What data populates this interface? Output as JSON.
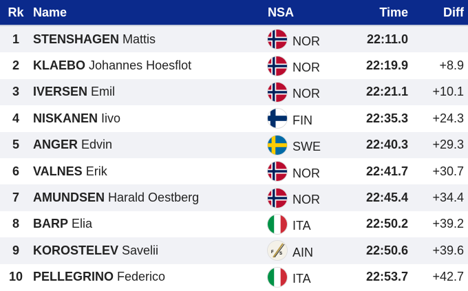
{
  "header": {
    "rank": "Rk",
    "name": "Name",
    "nsa": "NSA",
    "time": "Time",
    "diff": "Diff"
  },
  "colors": {
    "header_bg": "#0b2a8c"
  },
  "rows": [
    {
      "rank": "1",
      "last": "STENSHAGEN",
      "first": "Mattis",
      "nsa": "NOR",
      "flag": "norway-flag",
      "time": "22:11.0",
      "diff": ""
    },
    {
      "rank": "2",
      "last": "KLAEBO",
      "first": "Johannes Hoesflot",
      "nsa": "NOR",
      "flag": "norway-flag",
      "time": "22:19.9",
      "diff": "+8.9"
    },
    {
      "rank": "3",
      "last": "IVERSEN",
      "first": "Emil",
      "nsa": "NOR",
      "flag": "norway-flag",
      "time": "22:21.1",
      "diff": "+10.1"
    },
    {
      "rank": "4",
      "last": "NISKANEN",
      "first": "Iivo",
      "nsa": "FIN",
      "flag": "finland-flag",
      "time": "22:35.3",
      "diff": "+24.3"
    },
    {
      "rank": "5",
      "last": "ANGER",
      "first": "Edvin",
      "nsa": "SWE",
      "flag": "sweden-flag",
      "time": "22:40.3",
      "diff": "+29.3"
    },
    {
      "rank": "6",
      "last": "VALNES",
      "first": "Erik",
      "nsa": "NOR",
      "flag": "norway-flag",
      "time": "22:41.7",
      "diff": "+30.7"
    },
    {
      "rank": "7",
      "last": "AMUNDSEN",
      "first": "Harald Oestberg",
      "nsa": "NOR",
      "flag": "norway-flag",
      "time": "22:45.4",
      "diff": "+34.4"
    },
    {
      "rank": "8",
      "last": "BARP",
      "first": "Elia",
      "nsa": "ITA",
      "flag": "italy-flag",
      "time": "22:50.2",
      "diff": "+39.2"
    },
    {
      "rank": "9",
      "last": "KOROSTELEV",
      "first": "Savelii",
      "nsa": "AIN",
      "flag": "fis-flag",
      "time": "22:50.6",
      "diff": "+39.6"
    },
    {
      "rank": "10",
      "last": "PELLEGRINO",
      "first": "Federico",
      "nsa": "ITA",
      "flag": "italy-flag",
      "time": "22:53.7",
      "diff": "+42.7"
    }
  ]
}
